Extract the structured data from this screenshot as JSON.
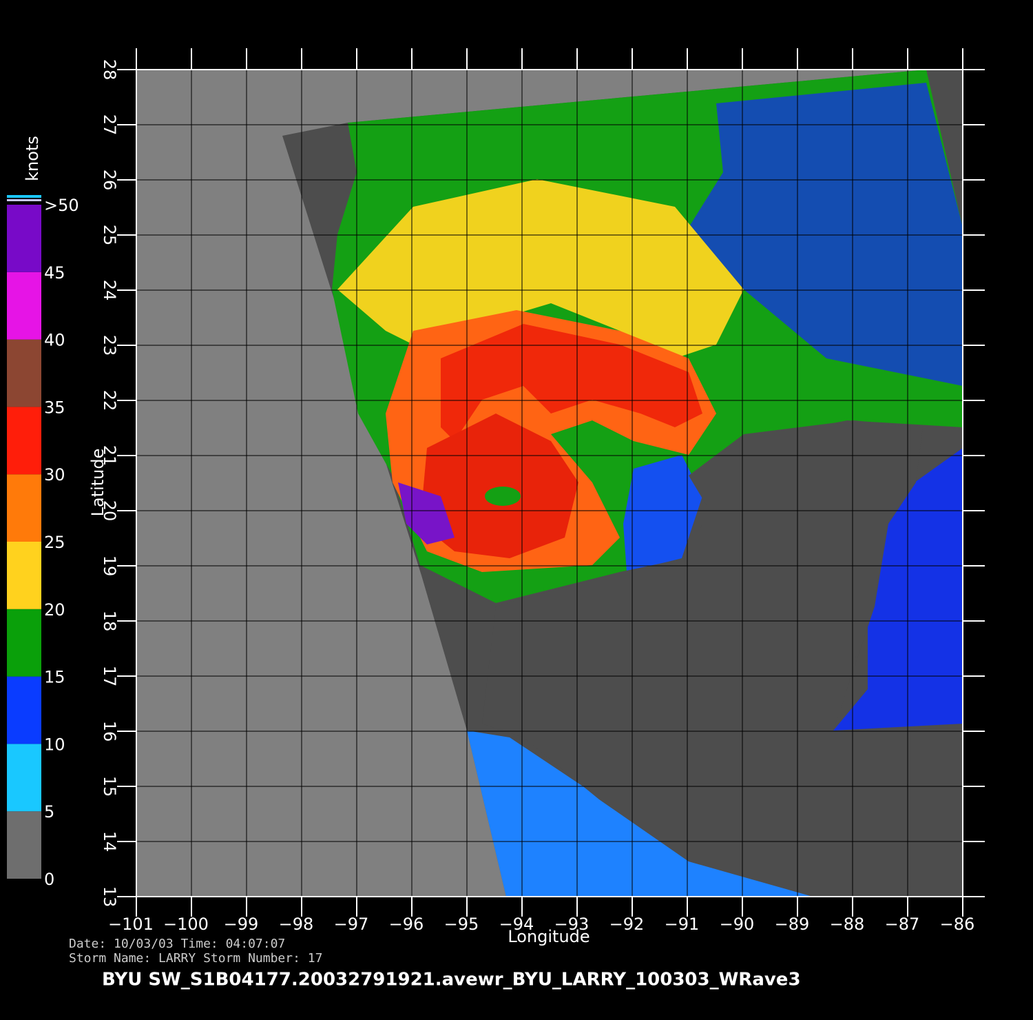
{
  "chart_data": {
    "type": "map",
    "xlabel": "Longitude",
    "ylabel": "Latitude",
    "xlim": [
      -101,
      -86
    ],
    "ylim": [
      13,
      28
    ],
    "xticks": [
      {
        "value": -101,
        "label": "−101"
      },
      {
        "value": -100,
        "label": "−100"
      },
      {
        "value": -99,
        "label": "−99"
      },
      {
        "value": -98,
        "label": "−98"
      },
      {
        "value": -97,
        "label": "−97"
      },
      {
        "value": -96,
        "label": "−96"
      },
      {
        "value": -95,
        "label": "−95"
      },
      {
        "value": -94,
        "label": "−94"
      },
      {
        "value": -93,
        "label": "−93"
      },
      {
        "value": -92,
        "label": "−92"
      },
      {
        "value": -91,
        "label": "−91"
      },
      {
        "value": -90,
        "label": "−90"
      },
      {
        "value": -89,
        "label": "−89"
      },
      {
        "value": -88,
        "label": "−88"
      },
      {
        "value": -87,
        "label": "−87"
      },
      {
        "value": -86,
        "label": "−86"
      }
    ],
    "yticks": [
      13,
      14,
      15,
      16,
      17,
      18,
      19,
      20,
      21,
      22,
      23,
      24,
      25,
      26,
      27,
      28
    ],
    "grid": true,
    "colorbar": {
      "title": "knots",
      "lim": [
        0,
        50
      ],
      "ticks": [
        0,
        5,
        10,
        15,
        20,
        25,
        30,
        35,
        40,
        45,
        {
          "value": 50,
          "label": ">50"
        }
      ],
      "colors": [
        "#6e6e6e",
        "#19c8ff",
        "#0a3cff",
        "#0aa00a",
        "#ffd21e",
        "#ff7a0a",
        "#ff1e0a",
        "#8c4632",
        "#e614e6",
        "#780ac8"
      ]
    },
    "footer": [
      "Date: 10/03/03   Time: 04:07:07",
      "Storm  Name: LARRY   Storm  Number: 17"
    ],
    "title": "BYU  SW_S1B04177.20032791921.avewr_BYU_LARRY_100303_WRave3"
  }
}
